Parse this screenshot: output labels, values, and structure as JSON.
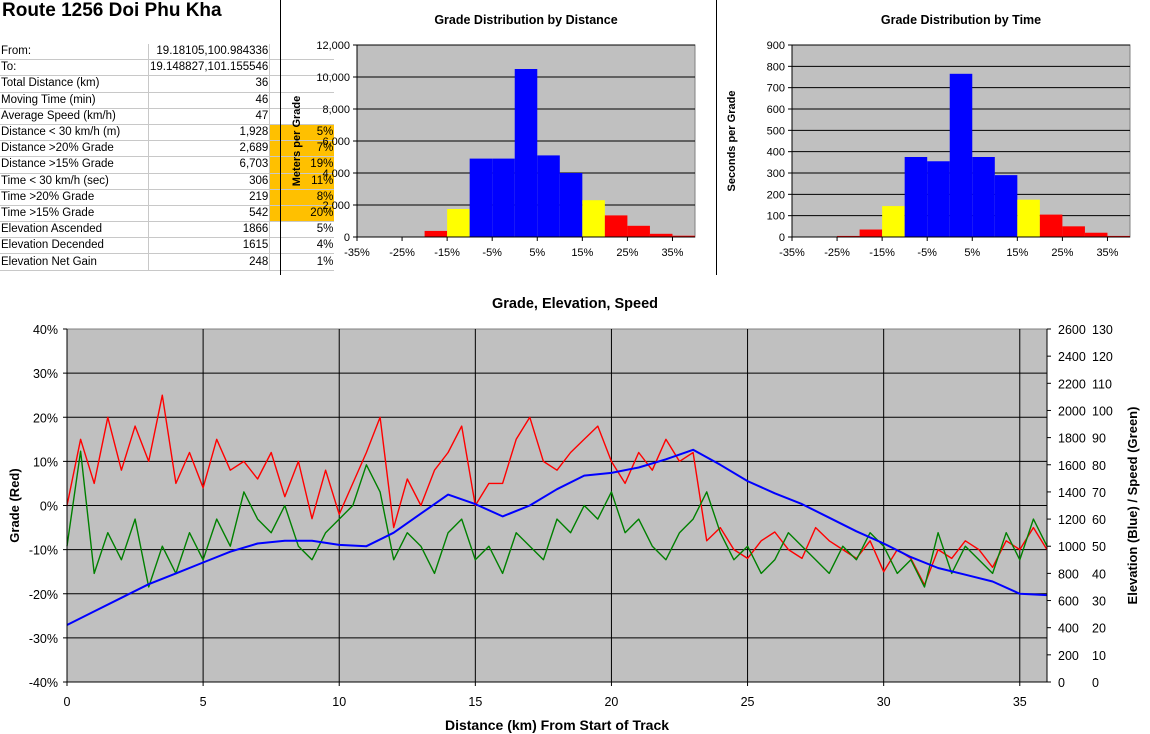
{
  "title": "Route 1256 Doi Phu Kha",
  "stats": [
    {
      "label": "From:",
      "value": "19.18105,100.984336",
      "pct": "",
      "hl": false
    },
    {
      "label": "To:",
      "value": "19.148827,101.155546",
      "pct": "",
      "hl": false
    },
    {
      "label": "Total Distance (km)",
      "value": "36",
      "pct": "",
      "hl": false
    },
    {
      "label": "Moving Time (min)",
      "value": "46",
      "pct": "",
      "hl": false
    },
    {
      "label": "Average Speed (km/h)",
      "value": "47",
      "pct": "",
      "hl": false
    },
    {
      "label": "Distance < 30 km/h (m)",
      "value": "1,928",
      "pct": "5%",
      "hl": true
    },
    {
      "label": "Distance >20% Grade",
      "value": "2,689",
      "pct": "7%",
      "hl": true
    },
    {
      "label": "Distance >15% Grade",
      "value": "6,703",
      "pct": "19%",
      "hl": true
    },
    {
      "label": "Time < 30 km/h (sec)",
      "value": "306",
      "pct": "11%",
      "hl": true
    },
    {
      "label": "Time >20% Grade",
      "value": "219",
      "pct": "8%",
      "hl": true
    },
    {
      "label": "Time >15% Grade",
      "value": "542",
      "pct": "20%",
      "hl": true
    },
    {
      "label": "Elevation Ascended",
      "value": "1866",
      "pct": "5%",
      "hl": false
    },
    {
      "label": "Elevation Decended",
      "value": "1615",
      "pct": "4%",
      "hl": false
    },
    {
      "label": "Elevation Net Gain",
      "value": "248",
      "pct": "1%",
      "hl": false
    }
  ],
  "chart_data": [
    {
      "type": "bar",
      "title": "Grade Distribution by Distance",
      "ylabel": "Meters per Grade",
      "xlabel": "",
      "ylim": [
        0,
        12000
      ],
      "yticks": [
        0,
        2000,
        4000,
        6000,
        8000,
        10000,
        12000
      ],
      "ytick_labels": [
        "0",
        "2,000",
        "4,000",
        "6,000",
        "8,000",
        "10,000",
        "12,000"
      ],
      "xlim": [
        -35,
        40
      ],
      "xticks": [
        -35,
        -25,
        -15,
        -5,
        5,
        15,
        25,
        35
      ],
      "xtick_labels": [
        "-35%",
        "-25%",
        "-15%",
        "-5%",
        "5%",
        "15%",
        "25%",
        "35%"
      ],
      "bin_width": 5,
      "bins": [
        -35,
        -30,
        -25,
        -20,
        -15,
        -10,
        -5,
        0,
        5,
        10,
        15,
        20,
        25,
        30,
        35
      ],
      "values": [
        0,
        0,
        0,
        380,
        1750,
        4900,
        4900,
        10500,
        5100,
        4000,
        2300,
        1350,
        700,
        200,
        80
      ],
      "colors": [
        "#ff0000",
        "#ff0000",
        "#ff0000",
        "#ff0000",
        "#ffff00",
        "#0000ff",
        "#0000ff",
        "#0000ff",
        "#0000ff",
        "#0000ff",
        "#ffff00",
        "#ff0000",
        "#ff0000",
        "#ff0000",
        "#ff0000"
      ],
      "grid": true
    },
    {
      "type": "bar",
      "title": "Grade Distribution by Time",
      "ylabel": "Seconds per Grade",
      "xlabel": "",
      "ylim": [
        0,
        900
      ],
      "yticks": [
        0,
        100,
        200,
        300,
        400,
        500,
        600,
        700,
        800,
        900
      ],
      "ytick_labels": [
        "0",
        "100",
        "200",
        "300",
        "400",
        "500",
        "600",
        "700",
        "800",
        "900"
      ],
      "xlim": [
        -35,
        40
      ],
      "xticks": [
        -35,
        -25,
        -15,
        -5,
        5,
        15,
        25,
        35
      ],
      "xtick_labels": [
        "-35%",
        "-25%",
        "-15%",
        "-5%",
        "5%",
        "15%",
        "25%",
        "35%"
      ],
      "bin_width": 5,
      "bins": [
        -35,
        -30,
        -25,
        -20,
        -15,
        -10,
        -5,
        0,
        5,
        10,
        15,
        20,
        25,
        30,
        35
      ],
      "values": [
        0,
        0,
        5,
        35,
        145,
        375,
        355,
        765,
        375,
        290,
        175,
        105,
        50,
        20,
        5
      ],
      "colors": [
        "#ff0000",
        "#ff0000",
        "#ff0000",
        "#ff0000",
        "#ffff00",
        "#0000ff",
        "#0000ff",
        "#0000ff",
        "#0000ff",
        "#0000ff",
        "#ffff00",
        "#ff0000",
        "#ff0000",
        "#ff0000",
        "#ff0000"
      ],
      "grid": true
    },
    {
      "type": "line",
      "title": "Grade, Elevation, Speed",
      "xlabel": "Distance (km) From Start of Track",
      "ylabel": "Grade (Red)",
      "ylabel_right": "Elevation (Blue) / Speed (Green)",
      "xlim": [
        0,
        36
      ],
      "xticks": [
        0,
        5,
        10,
        15,
        20,
        25,
        30,
        35
      ],
      "ylim": [
        -40,
        40
      ],
      "yticks": [
        -40,
        -30,
        -20,
        -10,
        0,
        10,
        20,
        30,
        40
      ],
      "ytick_labels": [
        "-40%",
        "-30%",
        "-20%",
        "-10%",
        "0%",
        "10%",
        "20%",
        "30%",
        "40%"
      ],
      "ylim_elevation": [
        0,
        2600
      ],
      "yticks_elevation": [
        0,
        200,
        400,
        600,
        800,
        1000,
        1200,
        1400,
        1600,
        1800,
        2000,
        2200,
        2400,
        2600
      ],
      "ylim_speed": [
        0,
        130
      ],
      "yticks_speed": [
        0,
        10,
        20,
        30,
        40,
        50,
        60,
        70,
        80,
        90,
        100,
        110,
        120,
        130
      ],
      "grid": true,
      "series": [
        {
          "name": "Elevation",
          "color": "#0000ff",
          "axis": "elevation",
          "x": [
            0,
            1,
            2,
            3,
            4,
            5,
            6,
            7,
            8,
            9,
            10,
            11,
            12,
            13,
            14,
            15,
            16,
            17,
            18,
            19,
            20,
            21,
            22,
            23,
            24,
            25,
            26,
            27,
            28,
            29,
            30,
            31,
            32,
            33,
            34,
            35,
            36
          ],
          "y": [
            420,
            520,
            620,
            720,
            800,
            880,
            960,
            1020,
            1040,
            1040,
            1010,
            1000,
            1100,
            1240,
            1380,
            1310,
            1220,
            1300,
            1420,
            1520,
            1540,
            1580,
            1640,
            1710,
            1600,
            1480,
            1390,
            1310,
            1210,
            1110,
            1020,
            920,
            840,
            790,
            740,
            650,
            640
          ]
        },
        {
          "name": "Speed",
          "color": "#008000",
          "axis": "speed",
          "x": [
            0,
            0.5,
            1,
            1.5,
            2,
            2.5,
            3,
            3.5,
            4,
            4.5,
            5,
            5.5,
            6,
            6.5,
            7,
            7.5,
            8,
            8.5,
            9,
            9.5,
            10,
            10.5,
            11,
            11.5,
            12,
            12.5,
            13,
            13.5,
            14,
            14.5,
            15,
            15.5,
            16,
            16.5,
            17,
            17.5,
            18,
            18.5,
            19,
            19.5,
            20,
            20.5,
            21,
            21.5,
            22,
            22.5,
            23,
            23.5,
            24,
            24.5,
            25,
            25.5,
            26,
            26.5,
            27,
            27.5,
            28,
            28.5,
            29,
            29.5,
            30,
            30.5,
            31,
            31.5,
            32,
            32.5,
            33,
            33.5,
            34,
            34.5,
            35,
            35.5,
            36
          ],
          "y": [
            50,
            85,
            40,
            55,
            45,
            60,
            35,
            50,
            40,
            55,
            45,
            60,
            50,
            70,
            60,
            55,
            65,
            50,
            45,
            55,
            60,
            65,
            80,
            70,
            45,
            55,
            50,
            40,
            55,
            60,
            45,
            50,
            40,
            55,
            50,
            45,
            60,
            55,
            65,
            60,
            70,
            55,
            60,
            50,
            45,
            55,
            60,
            70,
            55,
            45,
            50,
            40,
            45,
            55,
            50,
            45,
            40,
            50,
            45,
            55,
            50,
            40,
            45,
            35,
            55,
            40,
            50,
            45,
            40,
            55,
            45,
            60,
            50
          ]
        },
        {
          "name": "Grade",
          "color": "#ff0000",
          "axis": "grade",
          "x": [
            0,
            0.5,
            1,
            1.5,
            2,
            2.5,
            3,
            3.5,
            4,
            4.5,
            5,
            5.5,
            6,
            6.5,
            7,
            7.5,
            8,
            8.5,
            9,
            9.5,
            10,
            10.5,
            11,
            11.5,
            12,
            12.5,
            13,
            13.5,
            14,
            14.5,
            15,
            15.5,
            16,
            16.5,
            17,
            17.5,
            18,
            18.5,
            19,
            19.5,
            20,
            20.5,
            21,
            21.5,
            22,
            22.5,
            23,
            23.5,
            24,
            24.5,
            25,
            25.5,
            26,
            26.5,
            27,
            27.5,
            28,
            28.5,
            29,
            29.5,
            30,
            30.5,
            31,
            31.5,
            32,
            32.5,
            33,
            33.5,
            34,
            34.5,
            35,
            35.5,
            36
          ],
          "y": [
            0,
            15,
            5,
            20,
            8,
            18,
            10,
            25,
            5,
            12,
            4,
            15,
            8,
            10,
            6,
            12,
            2,
            10,
            -3,
            8,
            -2,
            5,
            12,
            20,
            -5,
            6,
            0,
            8,
            12,
            18,
            0,
            5,
            5,
            15,
            20,
            10,
            8,
            12,
            15,
            18,
            10,
            5,
            12,
            8,
            15,
            10,
            12,
            -8,
            -5,
            -10,
            -12,
            -8,
            -6,
            -10,
            -12,
            -5,
            -8,
            -10,
            -12,
            -8,
            -15,
            -10,
            -12,
            -18,
            -10,
            -12,
            -8,
            -10,
            -14,
            -8,
            -10,
            -5,
            -10
          ]
        }
      ]
    }
  ]
}
